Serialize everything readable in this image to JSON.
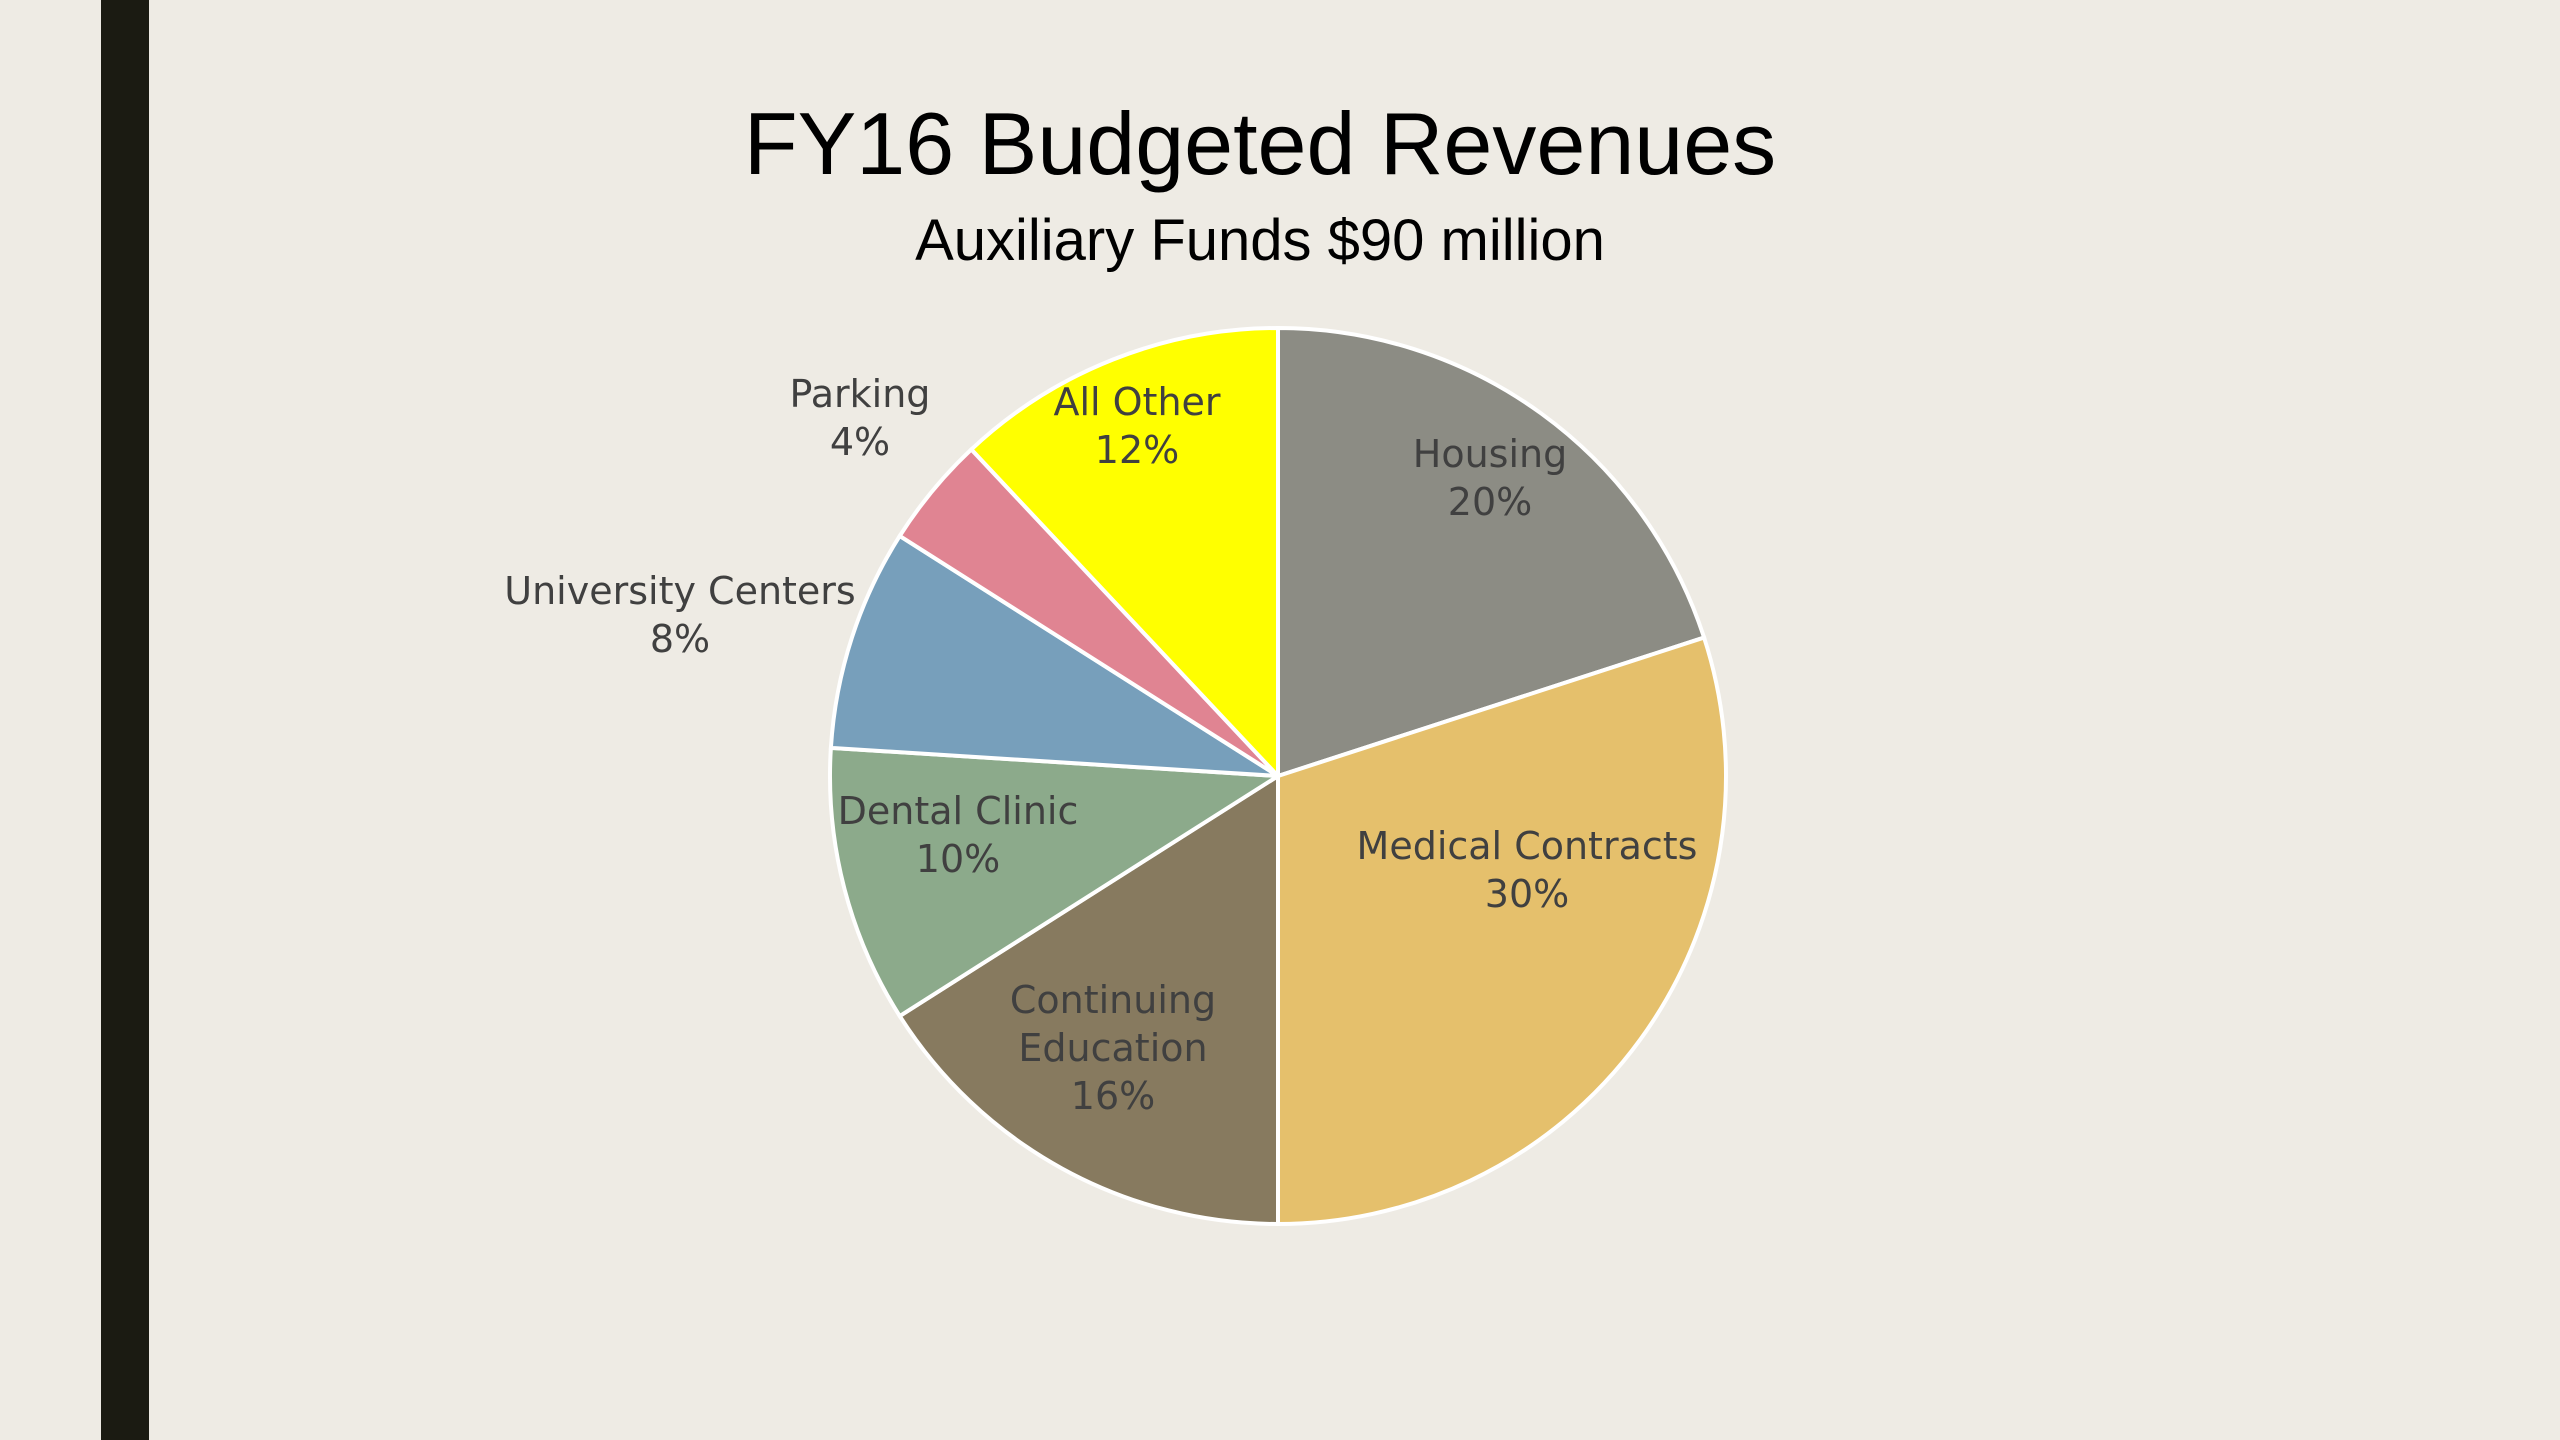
{
  "slide": {
    "accent_bar_color": "#1B1B12",
    "background_color": "#EEEBE4"
  },
  "chart_data": {
    "type": "pie",
    "title": "FY16 Budgeted Revenues",
    "subtitle": "Auxiliary Funds $90 million",
    "slices": [
      {
        "label": [
          "Housing"
        ],
        "pct_label": "20%",
        "value": 20,
        "color": "#8C8C84"
      },
      {
        "label": [
          "Medical Contracts"
        ],
        "pct_label": "30%",
        "value": 30,
        "color": "#E5C06C"
      },
      {
        "label": [
          "Continuing",
          "Education"
        ],
        "pct_label": "16%",
        "value": 16,
        "color": "#877A5F"
      },
      {
        "label": [
          "Dental Clinic"
        ],
        "pct_label": "10%",
        "value": 10,
        "color": "#8CAA8B"
      },
      {
        "label": [
          "University Centers"
        ],
        "pct_label": "8%",
        "value": 8,
        "color": "#779FBB"
      },
      {
        "label": [
          "Parking"
        ],
        "pct_label": "4%",
        "value": 4,
        "color": "#E08492"
      },
      {
        "label": [
          "All Other"
        ],
        "pct_label": "12%",
        "value": 12,
        "color": "#FFFF00"
      }
    ]
  }
}
